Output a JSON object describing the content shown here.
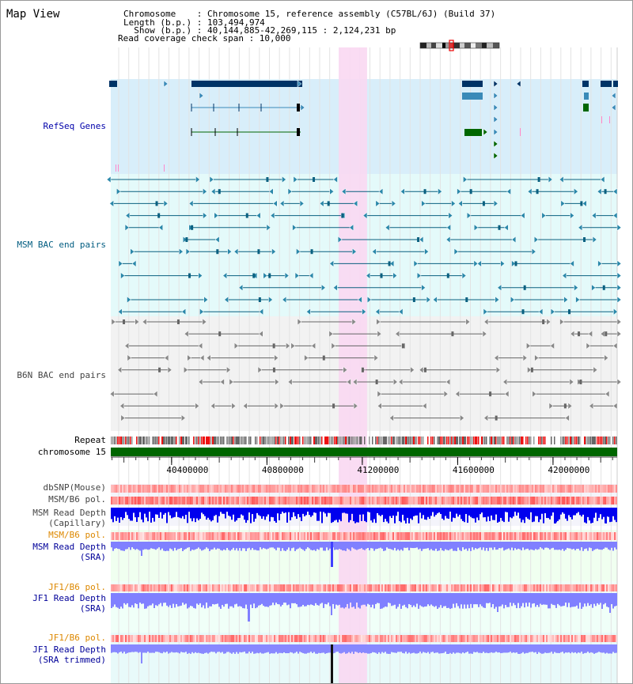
{
  "page": {
    "title": "Map View"
  },
  "header": {
    "lines": [
      "Chromosome    : Chromosome 15, reference assembly (C57BL/6J) (Build 37)",
      "Length (b.p.) : 103,494,974",
      "  Show (b.p.) : 40,144,885-42,269,115 : 2,124,231 bp",
      "Read coverage check span : 10,000"
    ]
  },
  "region": {
    "start": 40144885,
    "end": 42269115,
    "highlight": [
      41101000,
      41220000
    ]
  },
  "tracks": {
    "refseq": {
      "label": "RefSeq Genes",
      "color": "#0000aa"
    },
    "msm_bac": {
      "label": "MSM BAC end pairs",
      "color": "#005c80"
    },
    "b6n_bac": {
      "label": "B6N BAC end pairs",
      "color": "#444444"
    },
    "repeat": {
      "label": "Repeat"
    },
    "chromosome": {
      "label": "chromosome 15"
    },
    "axis": {
      "ticks": [
        {
          "value": 40400000,
          "label": "40400000"
        },
        {
          "value": 40800000,
          "label": "40800000"
        },
        {
          "value": 41200000,
          "label": "41200000"
        },
        {
          "value": 41600000,
          "label": "41600000"
        },
        {
          "value": 42000000,
          "label": "42000000"
        }
      ]
    },
    "dbsnp": {
      "label": "dbSNP(Mouse)"
    },
    "msm_b6_pol_cap": {
      "label": "MSM/B6 pol."
    },
    "msm_depth_cap": {
      "label1": "MSM Read Depth",
      "label2": "(Capillary)"
    },
    "msm_b6_pol_sra": {
      "label": "MSM/B6 pol."
    },
    "msm_depth_sra": {
      "label1": "MSM Read Depth",
      "label2": "(SRA)"
    },
    "jf1_b6_pol_1": {
      "label": "JF1/B6 pol."
    },
    "jf1_depth_sra": {
      "label1": "JF1 Read Depth",
      "label2": "(SRA)"
    },
    "jf1_b6_pol_2": {
      "label": "JF1/B6 pol."
    },
    "jf1_depth_trim": {
      "label1": "JF1 Read Depth",
      "label2": "(SRA trimmed)"
    }
  },
  "colors": {
    "refseq_bg": "#d8eefa",
    "msm_bg": "#e4fafa",
    "b6n_bg": "#f2f2f2",
    "highlight": "#f9d8f2",
    "chrom_bar": "#006600",
    "gene_dark": "#003366",
    "gene_mid": "#3a8ab8",
    "gene_green": "#006600",
    "orange_label": "#dd8800",
    "navy_label": "#000099",
    "depth_cap": "#0000ee",
    "depth_sra": "#8080ff",
    "depth_trim": "#8888ff",
    "snp_red": "#ff5050"
  }
}
